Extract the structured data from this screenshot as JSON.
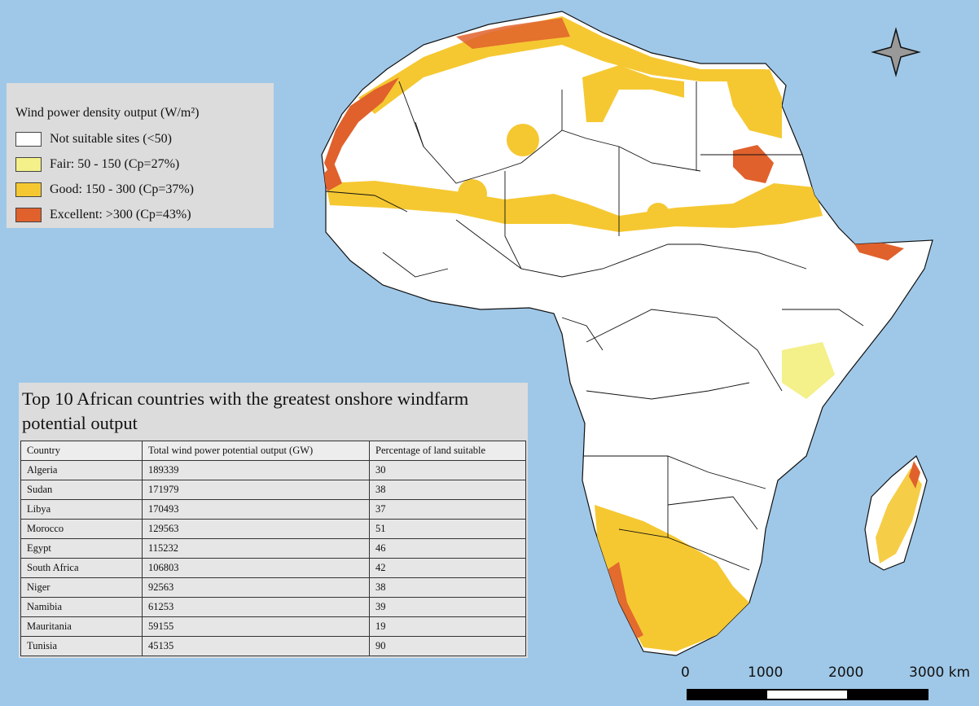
{
  "legend": {
    "title": "Wind power density output (W/m²)",
    "items": [
      {
        "label": "Not suitable sites (<50)",
        "color": "#ffffff"
      },
      {
        "label": "Fair: 50 - 150 (Cp=27%)",
        "color": "#f4f08a"
      },
      {
        "label": "Good: 150 - 300 (Cp=37%)",
        "color": "#f5c832"
      },
      {
        "label": "Excellent: >300 (Cp=43%)",
        "color": "#e0612c"
      }
    ]
  },
  "table": {
    "title": "Top 10 African countries with the greatest onshore windfarm potential output",
    "headers": [
      "Country",
      "Total wind power potential output (GW)",
      "Percentage of land suitable"
    ],
    "rows": [
      [
        "Algeria",
        "189339",
        "30"
      ],
      [
        "Sudan",
        "171979",
        "38"
      ],
      [
        "Libya",
        "170493",
        "37"
      ],
      [
        "Morocco",
        "129563",
        "51"
      ],
      [
        "Egypt",
        "115232",
        "46"
      ],
      [
        "South Africa",
        "106803",
        "42"
      ],
      [
        "Niger",
        "92563",
        "38"
      ],
      [
        "Namibia",
        "61253",
        "39"
      ],
      [
        "Mauritania",
        "59155",
        "19"
      ],
      [
        "Tunisia",
        "45135",
        "90"
      ]
    ]
  },
  "scale_bar": {
    "labels": [
      "0",
      "1000",
      "2000",
      "3000 km"
    ]
  },
  "colors": {
    "ocean": "#9fc8e8",
    "land": "#ffffff",
    "fair": "#f4f08a",
    "good": "#f5c832",
    "excellent": "#e0612c"
  }
}
